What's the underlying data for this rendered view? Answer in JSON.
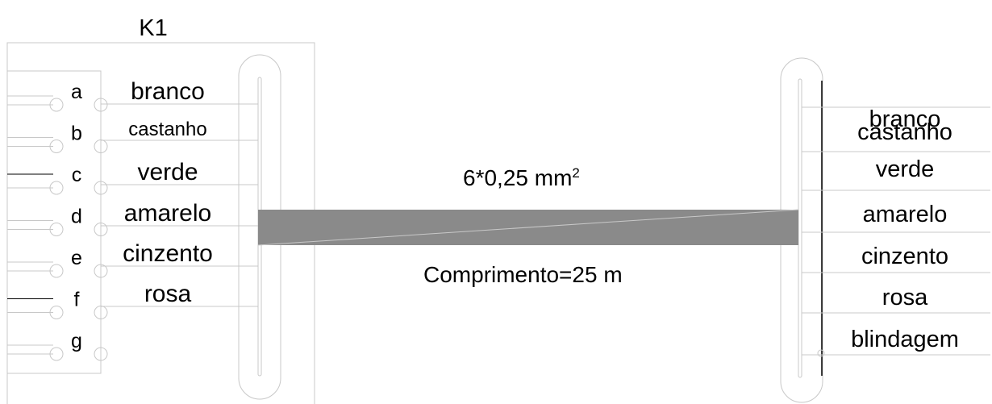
{
  "connector": {
    "name": "K1"
  },
  "pins": [
    "a",
    "b",
    "c",
    "d",
    "e",
    "f",
    "g"
  ],
  "left_wires": [
    "branco",
    "castanho",
    "verde",
    "amarelo",
    "cinzento",
    "rosa"
  ],
  "right_wires": [
    "branco",
    "castanho",
    "verde",
    "amarelo",
    "cinzento",
    "rosa",
    "blindagem"
  ],
  "cable": {
    "spec": "6*0,25 mm",
    "spec_superscript": "2",
    "length": "Comprimento=25 m"
  },
  "colors": {
    "line": "#c8c8c8",
    "cable": "#8a8a8a",
    "ink": "#000000"
  }
}
